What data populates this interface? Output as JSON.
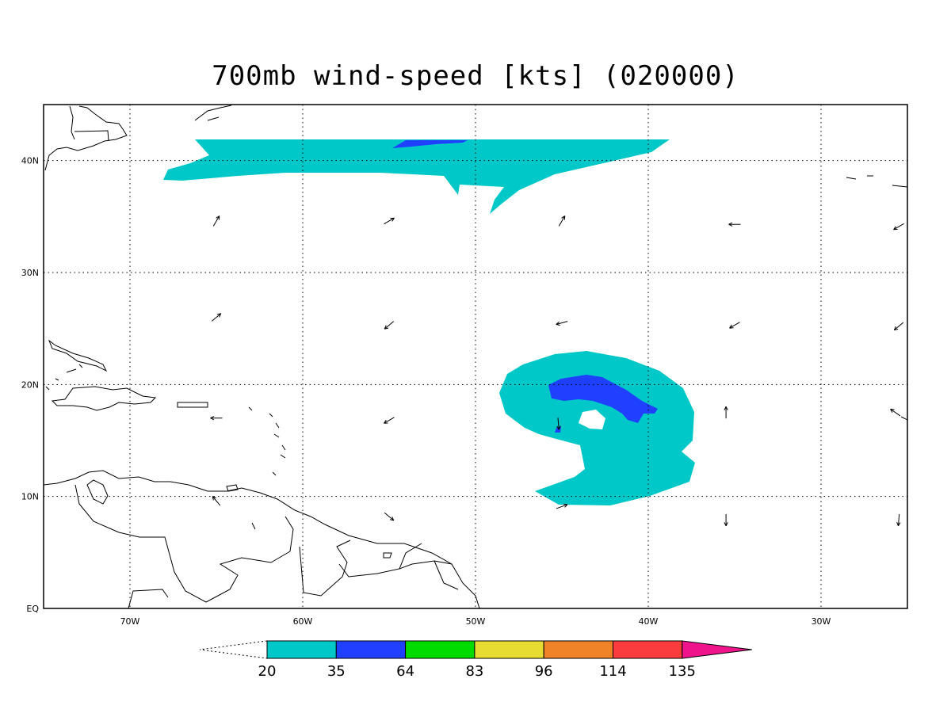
{
  "title": "700mb wind-speed [kts] (020000)",
  "map": {
    "lon_range": [
      -75,
      -25
    ],
    "lat_range": [
      0,
      45
    ],
    "lon_ticks": [
      {
        "value": -70,
        "label": "70W"
      },
      {
        "value": -60,
        "label": "60W"
      },
      {
        "value": -50,
        "label": "50W"
      },
      {
        "value": -40,
        "label": "40W"
      },
      {
        "value": -30,
        "label": "30W"
      }
    ],
    "lat_ticks": [
      {
        "value": 0,
        "label": "EQ"
      },
      {
        "value": 10,
        "label": "10N"
      },
      {
        "value": 20,
        "label": "20N"
      },
      {
        "value": 30,
        "label": "30N"
      },
      {
        "value": 40,
        "label": "40N"
      }
    ],
    "grid": "dotted"
  },
  "colorbar": {
    "levels": [
      "20",
      "35",
      "64",
      "83",
      "96",
      "114",
      "135"
    ],
    "colors": [
      "#00c8c8",
      "#2040ff",
      "#00dc00",
      "#e6dc32",
      "#f08228",
      "#fa3c3c",
      "#f0148c"
    ]
  },
  "wind_vectors": [
    {
      "lon": -65,
      "lat": 34.6,
      "dir": 60
    },
    {
      "lon": -55,
      "lat": 34.6,
      "dir": 30
    },
    {
      "lon": -45,
      "lat": 34.6,
      "dir": 60
    },
    {
      "lon": -35,
      "lat": 34.3,
      "dir": 180
    },
    {
      "lon": -25.5,
      "lat": 34.1,
      "dir": 210
    },
    {
      "lon": -65,
      "lat": 26,
      "dir": 40
    },
    {
      "lon": -55,
      "lat": 25.3,
      "dir": 220
    },
    {
      "lon": -45,
      "lat": 25.5,
      "dir": 195
    },
    {
      "lon": -35,
      "lat": 25.3,
      "dir": 210
    },
    {
      "lon": -25.5,
      "lat": 25.2,
      "dir": 220
    },
    {
      "lon": -65,
      "lat": 17,
      "dir": 180
    },
    {
      "lon": -55,
      "lat": 16.8,
      "dir": 210
    },
    {
      "lon": -45.2,
      "lat": 16.5,
      "dir": 275
    },
    {
      "lon": -35.5,
      "lat": 17.5,
      "dir": 90
    },
    {
      "lon": -25.7,
      "lat": 17.5,
      "dir": 145
    },
    {
      "lon": -65,
      "lat": 9.6,
      "dir": 130
    },
    {
      "lon": -55,
      "lat": 8.2,
      "dir": 320
    },
    {
      "lon": -45,
      "lat": 9.1,
      "dir": 20
    },
    {
      "lon": -35.5,
      "lat": 7.9,
      "dir": 270
    },
    {
      "lon": -25.5,
      "lat": 7.9,
      "dir": 265
    }
  ]
}
